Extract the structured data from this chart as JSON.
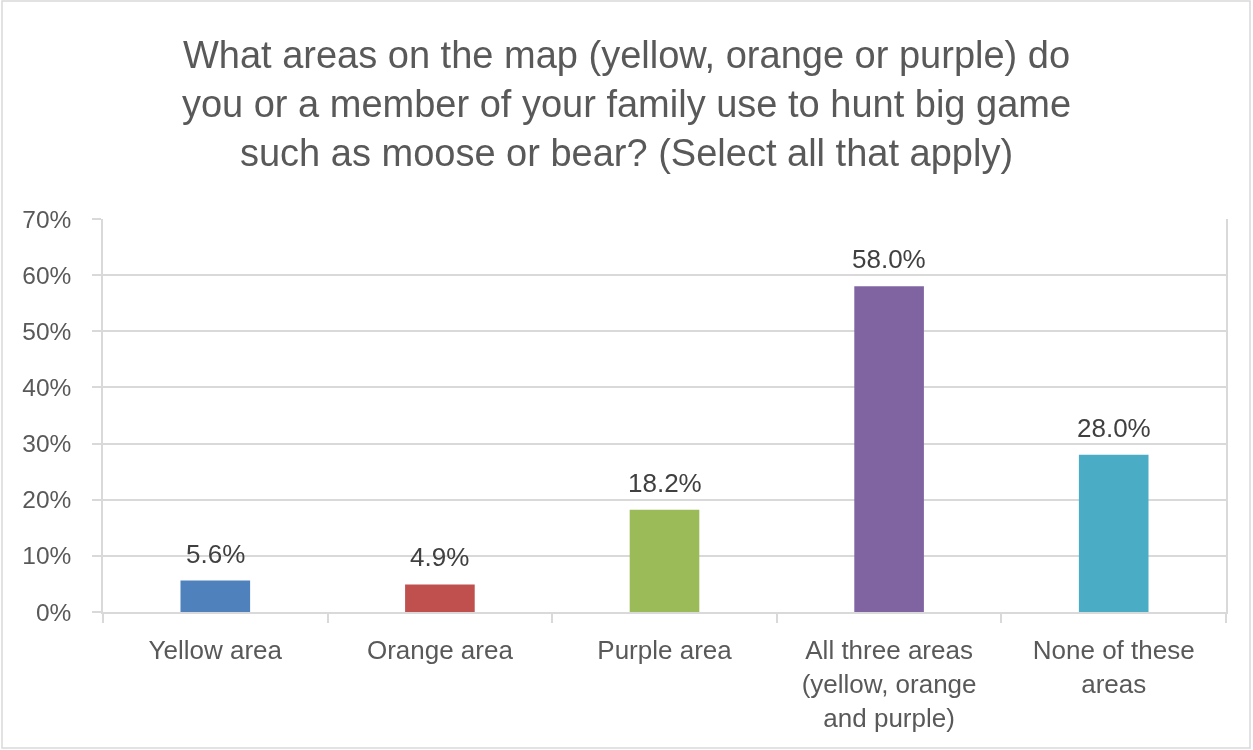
{
  "chart_data": {
    "type": "bar",
    "title": "What areas on the map (yellow, orange or purple) do you or a member of your family use to hunt big game such as moose or bear? (Select all that apply)",
    "categories": [
      "Yellow area",
      "Orange area",
      "Purple area",
      "All three areas (yellow, orange and purple)",
      "None of these areas"
    ],
    "values": [
      5.6,
      4.9,
      18.2,
      58.0,
      28.0
    ],
    "colors": [
      "#4f81bd",
      "#c0504d",
      "#9bbb59",
      "#8064a2",
      "#4bacc6"
    ],
    "value_labels": [
      "5.6%",
      "4.9%",
      "18.2%",
      "58.0%",
      "28.0%"
    ],
    "ylim": [
      0,
      70
    ],
    "yticks": [
      {
        "value": 0,
        "label": "0%"
      },
      {
        "value": 10,
        "label": "10%"
      },
      {
        "value": 20,
        "label": "20%"
      },
      {
        "value": 30,
        "label": "30%"
      },
      {
        "value": 40,
        "label": "40%"
      },
      {
        "value": 50,
        "label": "50%"
      },
      {
        "value": 60,
        "label": "60%"
      },
      {
        "value": 70,
        "label": "70%"
      }
    ],
    "grid": "y"
  }
}
